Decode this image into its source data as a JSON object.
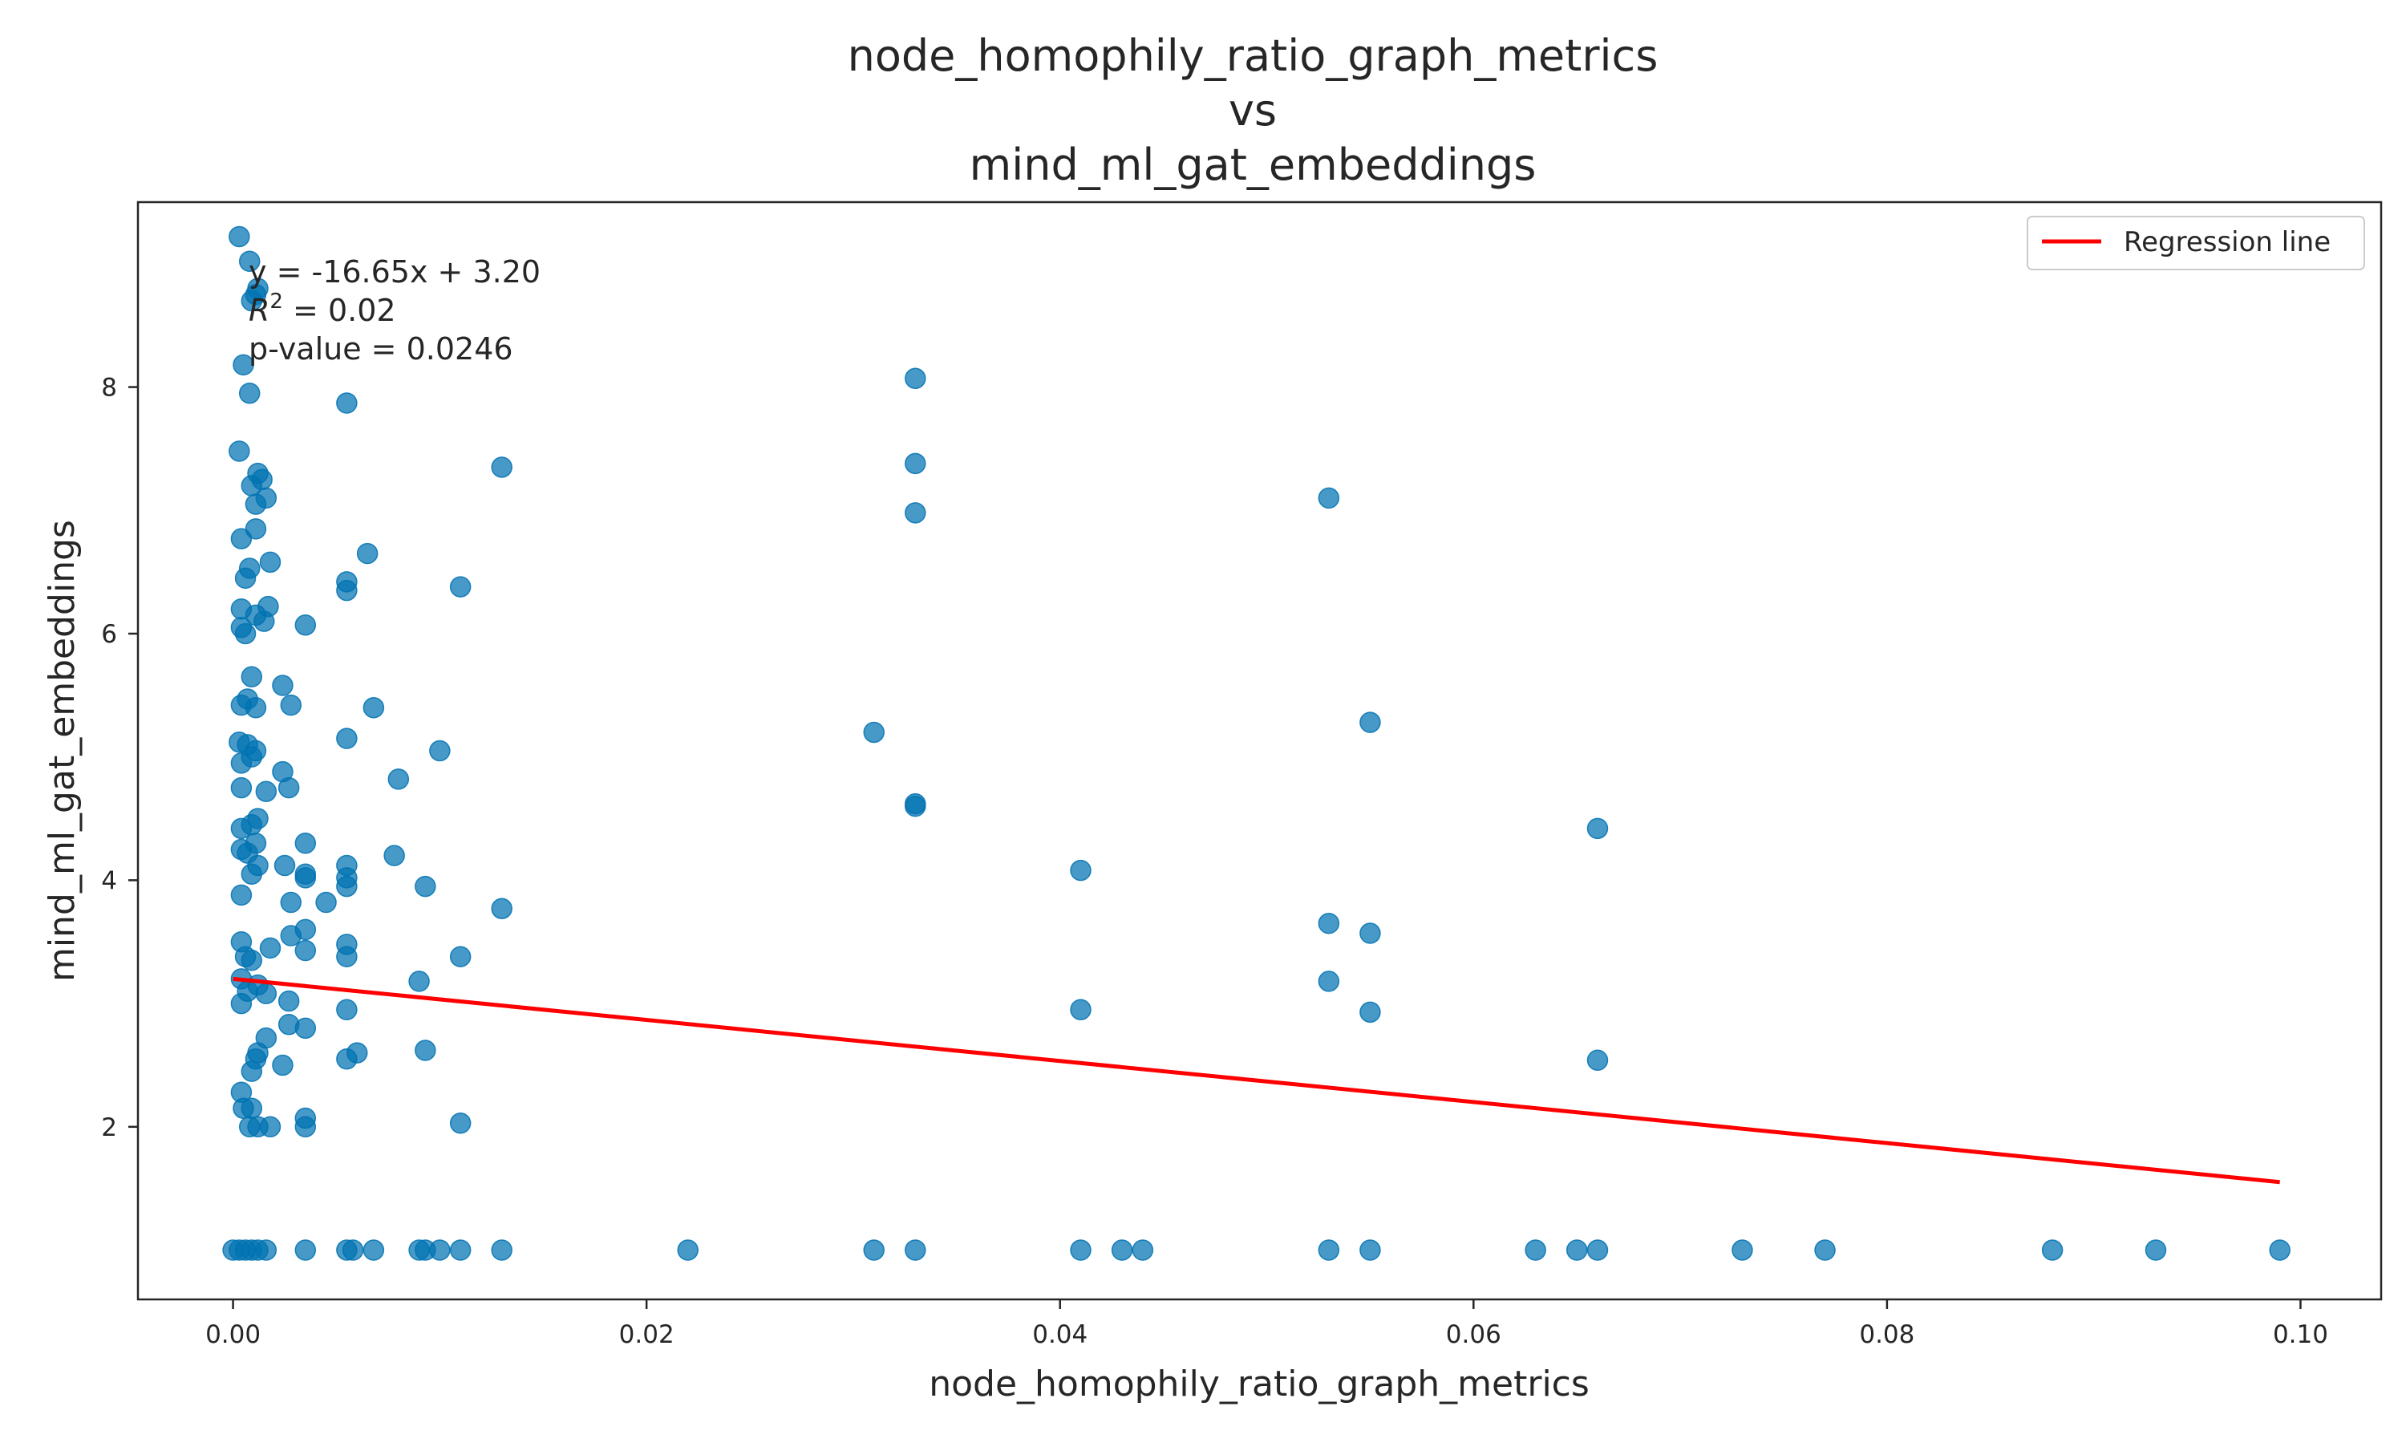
{
  "chart_data": {
    "type": "scatter",
    "title": [
      "node_homophily_ratio_graph_metrics",
      "vs",
      "mind_ml_gat_embeddings"
    ],
    "xlabel": "node_homophily_ratio_graph_metrics",
    "ylabel": "mind_ml_gat_embeddings",
    "xlim": [
      -0.0046,
      0.1039
    ],
    "ylim": [
      0.6,
      9.5
    ],
    "x_ticks": [
      0.0,
      0.02,
      0.04,
      0.06,
      0.08,
      0.1
    ],
    "x_tick_labels": [
      "0.00",
      "0.02",
      "0.04",
      "0.06",
      "0.08",
      "0.10"
    ],
    "y_ticks": [
      2,
      4,
      6,
      8
    ],
    "y_tick_labels": [
      "2",
      "4",
      "6",
      "8"
    ],
    "grid": false,
    "legend_position": "top-right",
    "point_color": "#0072B2",
    "line_color": "#ff0000",
    "annotation": {
      "equation": "y = -16.65x + 3.20",
      "r2_prefix": "R",
      "r2_superscript": "2",
      "r2_suffix": " = 0.02",
      "pvalue": "p-value = 0.0246"
    },
    "regression": {
      "name": "Regression line",
      "slope": -16.65,
      "intercept": 3.2,
      "x_range": [
        0.0,
        0.099
      ]
    },
    "series": [
      {
        "points": [
          [
            0.0003,
            9.22
          ],
          [
            0.0008,
            9.02
          ],
          [
            0.0012,
            8.8
          ],
          [
            0.0011,
            8.75
          ],
          [
            0.0009,
            8.7
          ],
          [
            0.0005,
            8.18
          ],
          [
            0.0008,
            7.95
          ],
          [
            0.0003,
            7.48
          ],
          [
            0.0012,
            7.3
          ],
          [
            0.0014,
            7.25
          ],
          [
            0.0009,
            7.2
          ],
          [
            0.0016,
            7.1
          ],
          [
            0.0011,
            7.05
          ],
          [
            0.0004,
            6.77
          ],
          [
            0.0011,
            6.85
          ],
          [
            0.0018,
            6.58
          ],
          [
            0.0008,
            6.53
          ],
          [
            0.0006,
            6.45
          ],
          [
            0.0004,
            6.2
          ],
          [
            0.0011,
            6.15
          ],
          [
            0.0017,
            6.22
          ],
          [
            0.0015,
            6.1
          ],
          [
            0.0004,
            6.05
          ],
          [
            0.0006,
            6.0
          ],
          [
            0.0009,
            5.65
          ],
          [
            0.0024,
            5.58
          ],
          [
            0.0004,
            5.42
          ],
          [
            0.0011,
            5.4
          ],
          [
            0.0028,
            5.42
          ],
          [
            0.0007,
            5.47
          ],
          [
            0.0003,
            5.12
          ],
          [
            0.0007,
            5.1
          ],
          [
            0.0011,
            5.05
          ],
          [
            0.0004,
            4.95
          ],
          [
            0.0009,
            5.0
          ],
          [
            0.0024,
            4.88
          ],
          [
            0.0004,
            4.75
          ],
          [
            0.0016,
            4.72
          ],
          [
            0.0027,
            4.75
          ],
          [
            0.0012,
            4.5
          ],
          [
            0.0004,
            4.42
          ],
          [
            0.0009,
            4.45
          ],
          [
            0.0011,
            4.3
          ],
          [
            0.0007,
            4.22
          ],
          [
            0.0004,
            4.25
          ],
          [
            0.0012,
            4.12
          ],
          [
            0.0025,
            4.12
          ],
          [
            0.0009,
            4.05
          ],
          [
            0.0004,
            3.88
          ],
          [
            0.0028,
            3.82
          ],
          [
            0.0004,
            3.5
          ],
          [
            0.0018,
            3.45
          ],
          [
            0.0028,
            3.55
          ],
          [
            0.0006,
            3.38
          ],
          [
            0.0009,
            3.35
          ],
          [
            0.0004,
            3.2
          ],
          [
            0.0012,
            3.15
          ],
          [
            0.0007,
            3.1
          ],
          [
            0.0016,
            3.08
          ],
          [
            0.0027,
            3.02
          ],
          [
            0.0004,
            3.0
          ],
          [
            0.0016,
            2.72
          ],
          [
            0.0027,
            2.83
          ],
          [
            0.0012,
            2.6
          ],
          [
            0.0011,
            2.55
          ],
          [
            0.0009,
            2.45
          ],
          [
            0.0004,
            2.28
          ],
          [
            0.0005,
            2.15
          ],
          [
            0.0009,
            2.15
          ],
          [
            0.0008,
            2.0
          ],
          [
            0.0012,
            2.0
          ],
          [
            0.0018,
            2.0
          ],
          [
            0.0024,
            2.5
          ],
          [
            0.0055,
            7.87
          ],
          [
            0.0065,
            6.65
          ],
          [
            0.0055,
            6.42
          ],
          [
            0.0055,
            6.35
          ],
          [
            0.0035,
            6.07
          ],
          [
            0.0068,
            5.4
          ],
          [
            0.0055,
            5.15
          ],
          [
            0.0035,
            4.3
          ],
          [
            0.0035,
            4.05
          ],
          [
            0.0035,
            4.02
          ],
          [
            0.0055,
            4.12
          ],
          [
            0.0055,
            4.02
          ],
          [
            0.0055,
            3.95
          ],
          [
            0.0045,
            3.82
          ],
          [
            0.0035,
            3.6
          ],
          [
            0.0035,
            3.43
          ],
          [
            0.0055,
            3.48
          ],
          [
            0.0055,
            3.38
          ],
          [
            0.0055,
            2.95
          ],
          [
            0.0035,
            2.8
          ],
          [
            0.006,
            2.6
          ],
          [
            0.0055,
            2.55
          ],
          [
            0.0035,
            2.07
          ],
          [
            0.0035,
            2.0
          ],
          [
            0.008,
            4.82
          ],
          [
            0.0078,
            4.2
          ],
          [
            0.01,
            5.05
          ],
          [
            0.0093,
            3.95
          ],
          [
            0.009,
            3.18
          ],
          [
            0.0093,
            2.62
          ],
          [
            0.011,
            6.38
          ],
          [
            0.011,
            3.38
          ],
          [
            0.011,
            2.03
          ],
          [
            0.013,
            7.35
          ],
          [
            0.013,
            3.77
          ],
          [
            0.031,
            5.2
          ],
          [
            0.033,
            8.07
          ],
          [
            0.033,
            7.38
          ],
          [
            0.033,
            6.98
          ],
          [
            0.033,
            4.62
          ],
          [
            0.033,
            4.6
          ],
          [
            0.041,
            4.08
          ],
          [
            0.041,
            2.95
          ],
          [
            0.053,
            7.1
          ],
          [
            0.053,
            3.65
          ],
          [
            0.053,
            3.18
          ],
          [
            0.055,
            5.28
          ],
          [
            0.055,
            3.57
          ],
          [
            0.055,
            2.93
          ],
          [
            0.066,
            4.42
          ],
          [
            0.066,
            2.54
          ],
          [
            0.0,
            1.0
          ],
          [
            0.0003,
            1.0
          ],
          [
            0.0006,
            1.0
          ],
          [
            0.0009,
            1.0
          ],
          [
            0.0012,
            1.0
          ],
          [
            0.0016,
            1.0
          ],
          [
            0.0035,
            1.0
          ],
          [
            0.0055,
            1.0
          ],
          [
            0.0058,
            1.0
          ],
          [
            0.0068,
            1.0
          ],
          [
            0.009,
            1.0
          ],
          [
            0.0093,
            1.0
          ],
          [
            0.01,
            1.0
          ],
          [
            0.011,
            1.0
          ],
          [
            0.013,
            1.0
          ],
          [
            0.022,
            1.0
          ],
          [
            0.031,
            1.0
          ],
          [
            0.033,
            1.0
          ],
          [
            0.041,
            1.0
          ],
          [
            0.043,
            1.0
          ],
          [
            0.044,
            1.0
          ],
          [
            0.053,
            1.0
          ],
          [
            0.055,
            1.0
          ],
          [
            0.063,
            1.0
          ],
          [
            0.065,
            1.0
          ],
          [
            0.066,
            1.0
          ],
          [
            0.073,
            1.0
          ],
          [
            0.077,
            1.0
          ],
          [
            0.088,
            1.0
          ],
          [
            0.093,
            1.0
          ],
          [
            0.099,
            1.0
          ]
        ]
      }
    ]
  }
}
